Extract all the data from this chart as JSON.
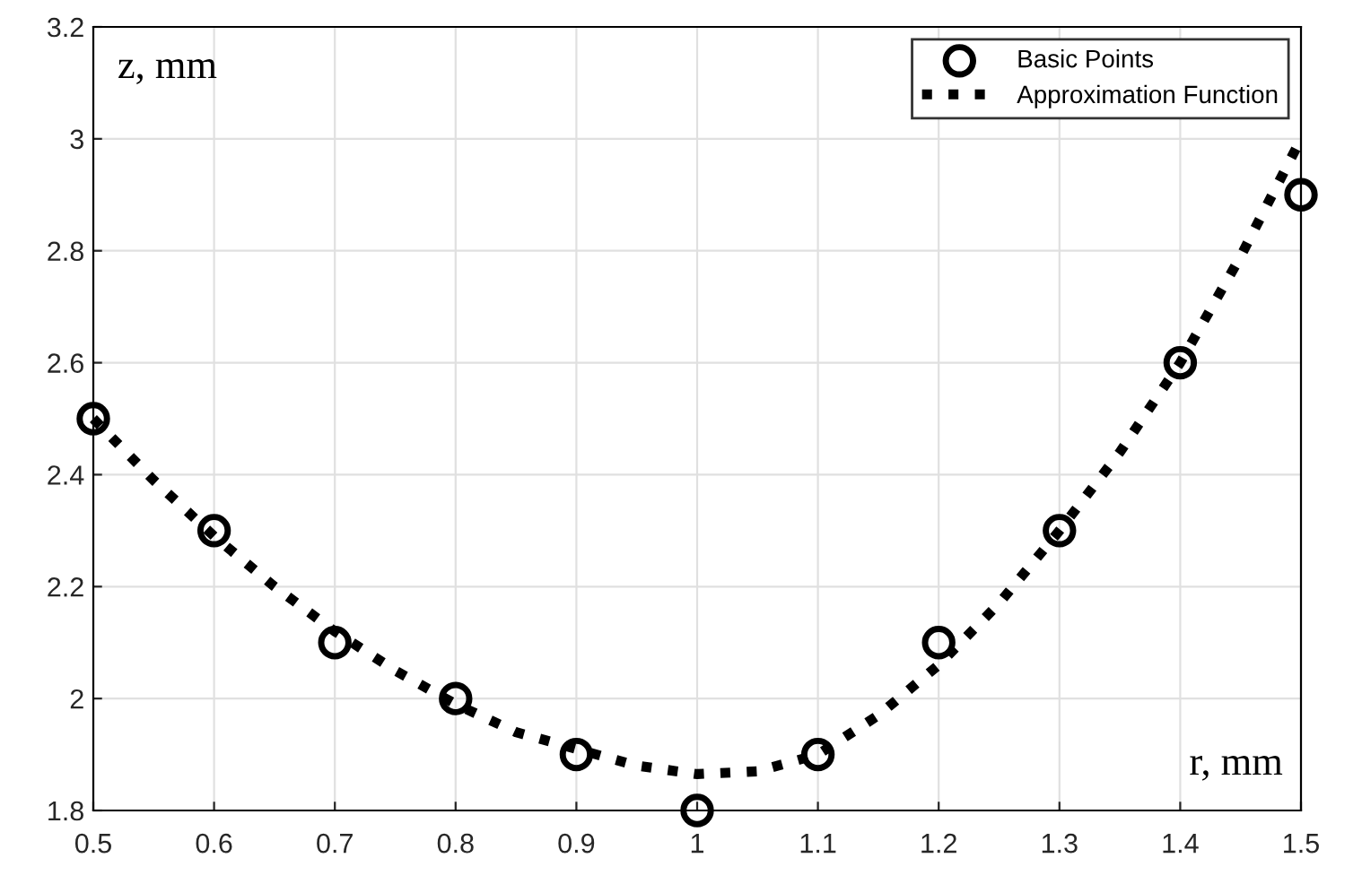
{
  "chart_data": {
    "type": "scatter",
    "xlabel": "r, mm",
    "ylabel": "z, mm",
    "xlim": [
      0.5,
      1.5
    ],
    "ylim": [
      1.8,
      3.2
    ],
    "xticks": [
      0.5,
      0.6,
      0.7,
      0.8,
      0.9,
      1,
      1.1,
      1.2,
      1.3,
      1.4,
      1.5
    ],
    "yticks": [
      1.8,
      2,
      2.2,
      2.4,
      2.6,
      2.8,
      3,
      3.2
    ],
    "grid": true,
    "legend": "top right",
    "series": [
      {
        "name": "Basic Points",
        "marker": "circle",
        "color": "#000000",
        "x": [
          0.5,
          0.6,
          0.7,
          0.8,
          0.9,
          1.0,
          1.1,
          1.2,
          1.3,
          1.4,
          1.5
        ],
        "values": [
          2.5,
          2.3,
          2.1,
          2.0,
          1.9,
          1.8,
          1.9,
          2.1,
          2.3,
          2.6,
          2.9
        ]
      },
      {
        "name": "Approximation Function",
        "type": "line",
        "line_style": "dotted",
        "color": "#000000",
        "x": [
          0.5,
          0.55,
          0.6,
          0.65,
          0.7,
          0.75,
          0.8,
          0.85,
          0.9,
          0.95,
          1.0,
          1.05,
          1.1,
          1.15,
          1.2,
          1.25,
          1.3,
          1.35,
          1.4,
          1.45,
          1.5
        ],
        "values": [
          2.5,
          2.39,
          2.29,
          2.2,
          2.12,
          2.05,
          1.99,
          1.94,
          1.91,
          1.88,
          1.865,
          1.87,
          1.9,
          1.97,
          2.06,
          2.17,
          2.3,
          2.44,
          2.6,
          2.79,
          3.0
        ]
      }
    ]
  }
}
